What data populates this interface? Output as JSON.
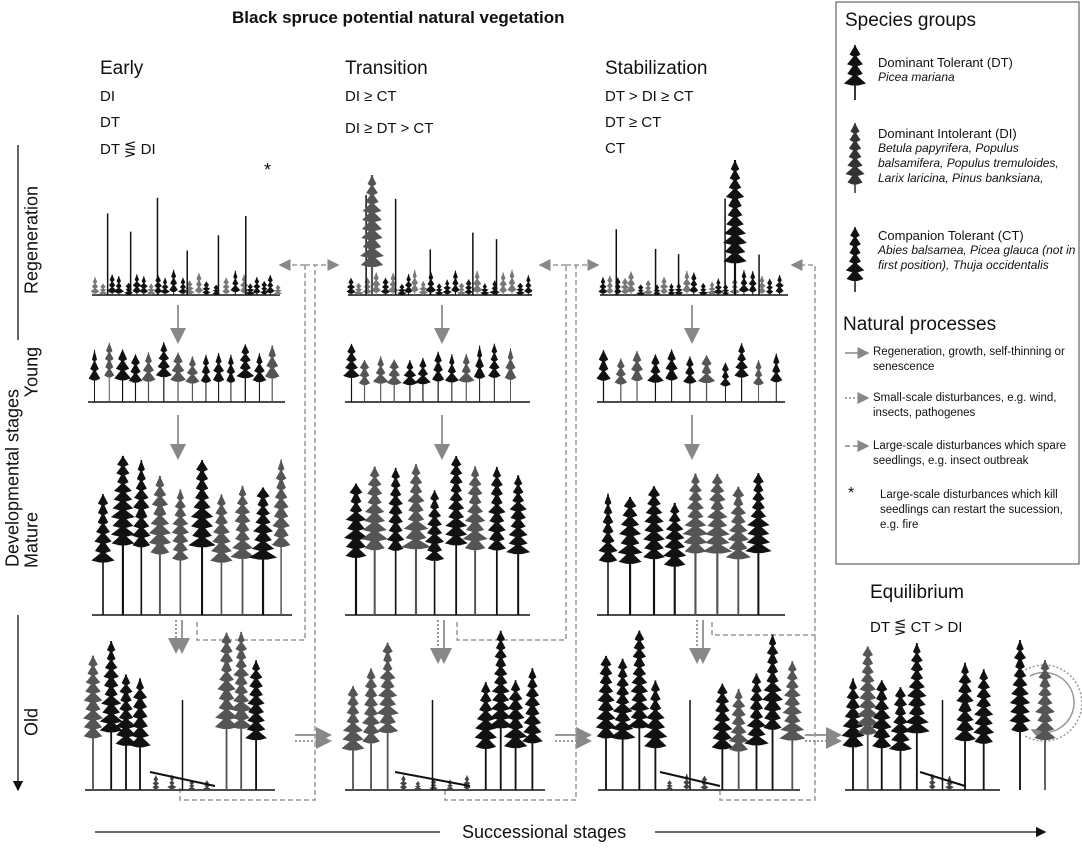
{
  "title": "Black spruce potential natural vegetation",
  "columns": [
    {
      "label": "Early",
      "formulas": [
        "DI",
        "DT",
        "DT ⋚ DI"
      ]
    },
    {
      "label": "Transition",
      "formulas": [
        "DI ≥ CT",
        "DI ≥ DT > CT"
      ]
    },
    {
      "label": "Stabilization",
      "formulas": [
        "DT > DI ≥ CT",
        "DT ≥ CT",
        "CT"
      ]
    },
    {
      "label": "Equilibrium",
      "formulas": [
        "DT ⋚ CT > DI"
      ]
    }
  ],
  "rows": [
    "Regeneration",
    "Young",
    "Mature",
    "Old"
  ],
  "y_axis_label": "Developmental stages",
  "x_axis_label": "Successional stages",
  "fire_marker": "*",
  "legend": {
    "species_title": "Species groups",
    "species": [
      {
        "name": "Dominant Tolerant (DT)",
        "members": "Picea mariana"
      },
      {
        "name": "Dominant Intolerant (DI)",
        "members": "Betula papyrifera, Populus balsamifera, Populus tremuloides, Larix laricina, Pinus banksiana,"
      },
      {
        "name": "Companion Tolerant (CT)",
        "members": "Abies balsamea, Picea glauca (not in first position), Thuja occidentalis"
      }
    ],
    "process_title": "Natural processes",
    "processes": [
      "Regeneration, growth, self-thinning or senescence",
      "Small-scale disturbances, e.g. wind, insects, pathogenes",
      "Large-scale disturbances which spare seedlings, e.g. insect outbreak",
      "Large-scale disturbances which kill seedlings can restart the sucession, e.g. fire"
    ]
  }
}
